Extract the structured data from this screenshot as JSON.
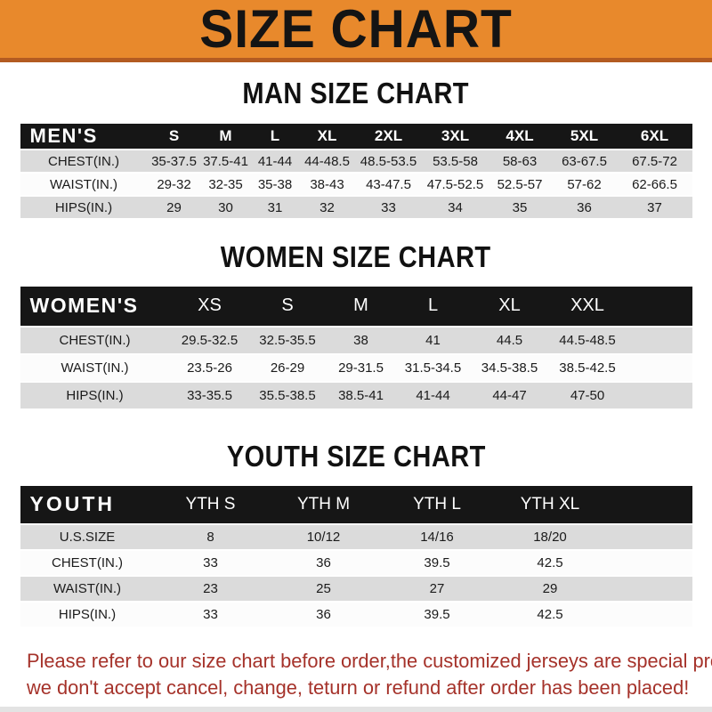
{
  "banner": {
    "title": "SIZE CHART"
  },
  "colors": {
    "banner_bg": "#E8892C",
    "banner_edge": "#B35B21",
    "bar_bg": "#161616",
    "row_alt_bg": "#DBDBDB",
    "notice_red": "#A5322A"
  },
  "sections": [
    {
      "heading": "MAN SIZE CHART",
      "corner_label": "MEN'S",
      "size_columns": [
        "S",
        "M",
        "L",
        "XL",
        "2XL",
        "3XL",
        "4XL",
        "5XL",
        "6XL"
      ],
      "rows": [
        {
          "label": "CHEST(IN.)",
          "values": [
            "35-37.5",
            "37.5-41",
            "41-44",
            "44-48.5",
            "48.5-53.5",
            "53.5-58",
            "58-63",
            "63-67.5",
            "67.5-72"
          ]
        },
        {
          "label": "WAIST(IN.)",
          "values": [
            "29-32",
            "32-35",
            "35-38",
            "38-43",
            "43-47.5",
            "47.5-52.5",
            "52.5-57",
            "57-62",
            "62-66.5"
          ]
        },
        {
          "label": "HIPS(IN.)",
          "values": [
            "29",
            "30",
            "31",
            "32",
            "33",
            "34",
            "35",
            "36",
            "37"
          ]
        }
      ]
    },
    {
      "heading": "WOMEN SIZE CHART",
      "corner_label": "WOMEN'S",
      "size_columns": [
        "XS",
        "S",
        "M",
        "L",
        "XL",
        "XXL"
      ],
      "rows": [
        {
          "label": "CHEST(IN.)",
          "values": [
            "29.5-32.5",
            "32.5-35.5",
            "38",
            "41",
            "44.5",
            "44.5-48.5"
          ]
        },
        {
          "label": "WAIST(IN.)",
          "values": [
            "23.5-26",
            "26-29",
            "29-31.5",
            "31.5-34.5",
            "34.5-38.5",
            "38.5-42.5"
          ]
        },
        {
          "label": "HIPS(IN.)",
          "values": [
            "33-35.5",
            "35.5-38.5",
            "38.5-41",
            "41-44",
            "44-47",
            "47-50"
          ]
        }
      ]
    },
    {
      "heading": "YOUTH SIZE CHART",
      "corner_label": "YOUTH",
      "size_columns": [
        "YTH S",
        "YTH M",
        "YTH L",
        "YTH XL"
      ],
      "rows": [
        {
          "label": "U.S.SIZE",
          "values": [
            "8",
            "10/12",
            "14/16",
            "18/20"
          ]
        },
        {
          "label": "CHEST(IN.)",
          "values": [
            "33",
            "36",
            "39.5",
            "42.5"
          ]
        },
        {
          "label": "WAIST(IN.)",
          "values": [
            "23",
            "25",
            "27",
            "29"
          ]
        },
        {
          "label": "HIPS(IN.)",
          "values": [
            "33",
            "36",
            "39.5",
            "42.5"
          ]
        }
      ]
    }
  ],
  "footer": {
    "line1": "Please refer to our size chart before order,the customized jerseys are special products,",
    "line2": "we don't accept cancel, change, teturn or refund after order has been placed!"
  }
}
